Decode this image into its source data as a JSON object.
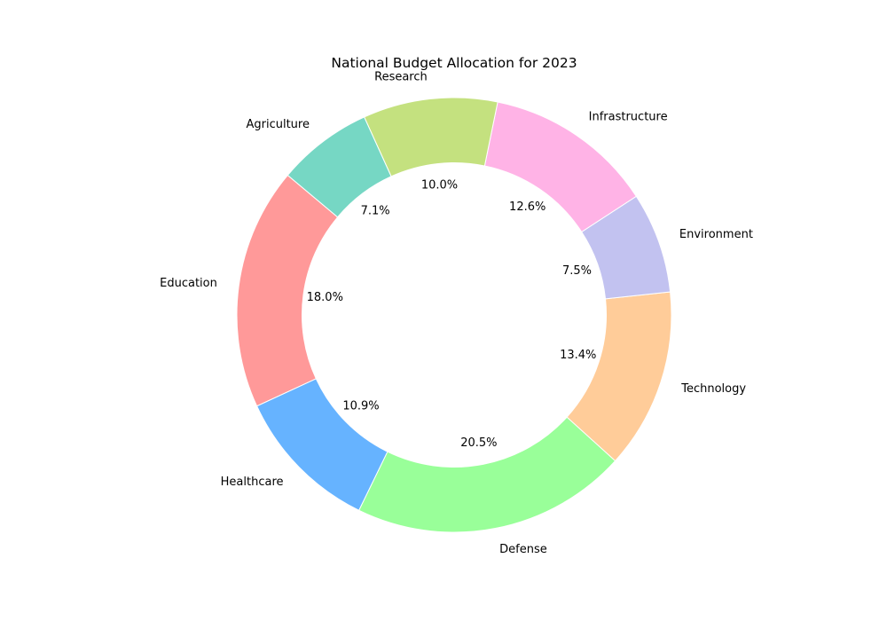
{
  "chart_data": {
    "type": "pie",
    "variant": "donut",
    "title": "National Budget Allocation for 2023",
    "categories": [
      "Education",
      "Healthcare",
      "Defense",
      "Technology",
      "Environment",
      "Infrastructure",
      "Research",
      "Agriculture"
    ],
    "values": [
      18.0,
      10.9,
      20.5,
      13.4,
      7.5,
      12.6,
      10.0,
      7.1
    ],
    "percent_labels": [
      "18.0%",
      "10.9%",
      "20.5%",
      "13.4%",
      "7.5%",
      "12.6%",
      "10.0%",
      "7.1%"
    ],
    "colors": [
      "#ff9999",
      "#66b3ff",
      "#99ff99",
      "#ffcc99",
      "#c2c2f0",
      "#ffb3e6",
      "#c4e17f",
      "#76d7c4"
    ],
    "start_angle_deg": 140,
    "direction": "counterclockwise",
    "legend": "none"
  }
}
